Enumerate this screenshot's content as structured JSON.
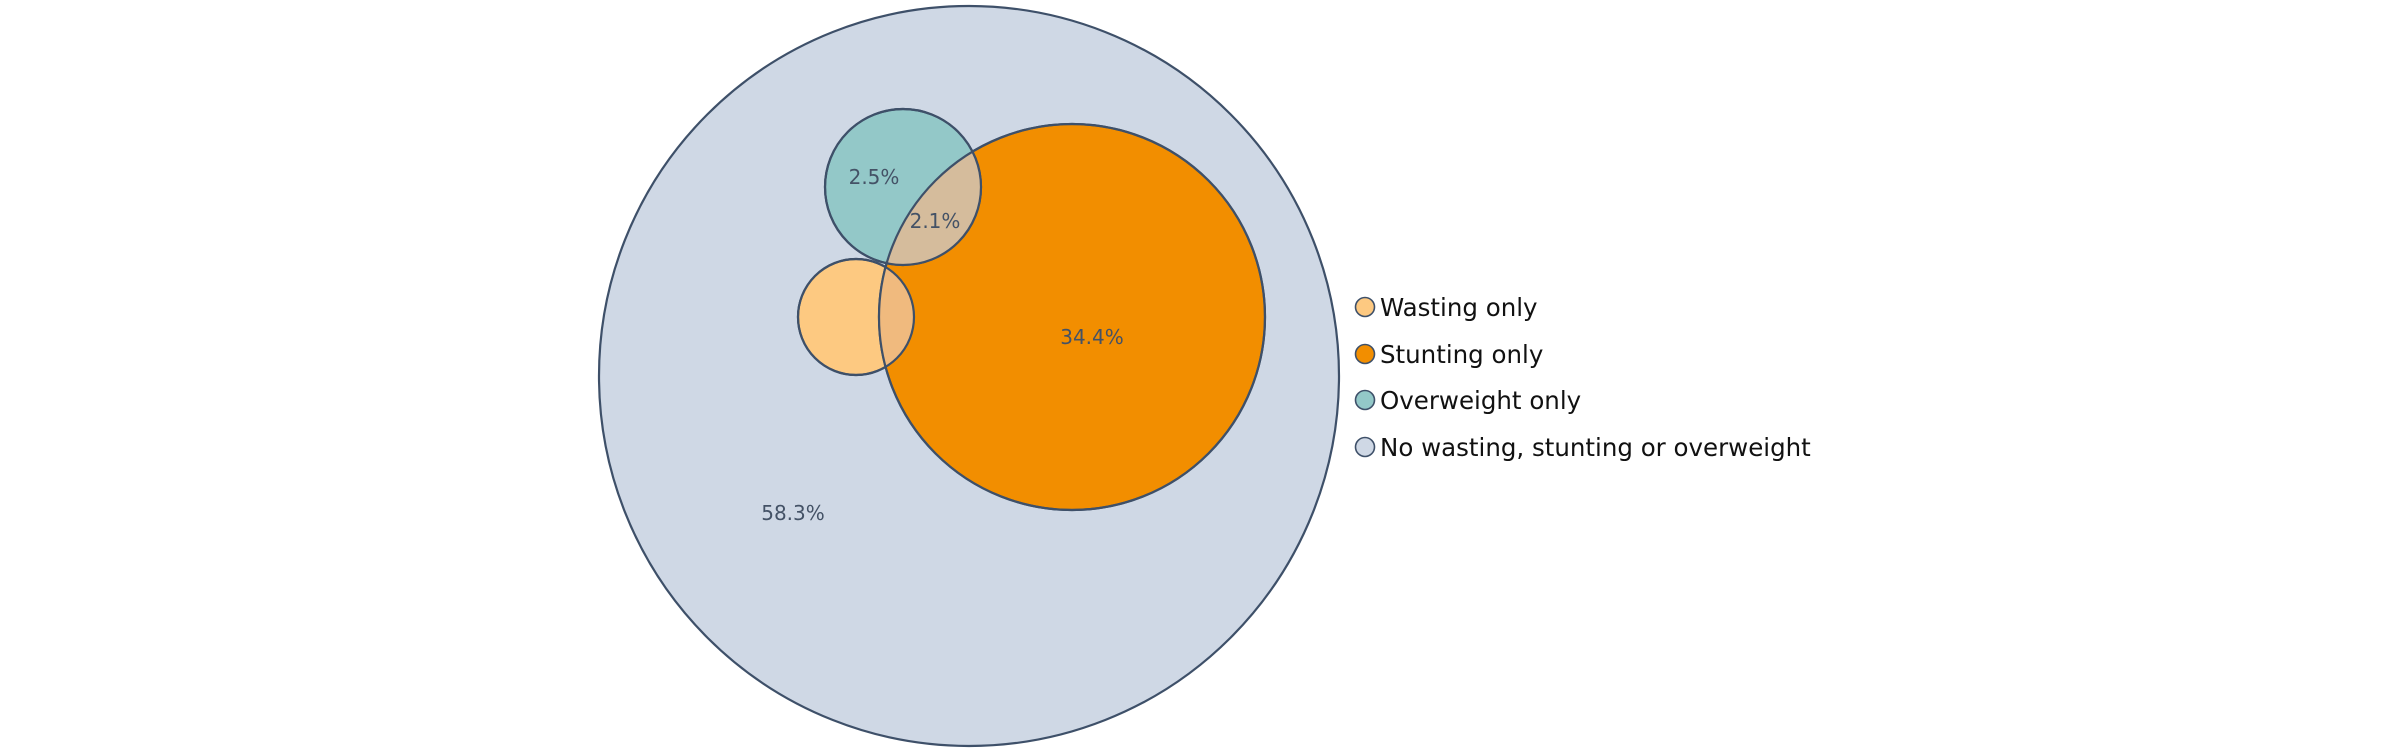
{
  "chart_data": {
    "type": "nested-circle-venn",
    "title": "",
    "regions": [
      {
        "key": "none",
        "label": "58.3%",
        "value": 58.3
      },
      {
        "key": "stunting",
        "label": "34.4%",
        "value": 34.4
      },
      {
        "key": "overweight",
        "label": "2.5%",
        "value": 2.5
      },
      {
        "key": "stunting_overweight",
        "label": "2.1%",
        "value": 2.1
      }
    ],
    "legend": [
      {
        "label": "Wasting only",
        "color": "#fdc981"
      },
      {
        "label": "Stunting only",
        "color": "#f28e00"
      },
      {
        "label": "Overweight only",
        "color": "#93c8c8"
      },
      {
        "label": "No wasting, stunting or overweight",
        "color": "#cfd8e5"
      }
    ],
    "colors": {
      "outline": "#3e5069",
      "overlap_stunting_overweight": "#d5bc9c",
      "overlap_wasting_stunting": "#f0ba7e"
    },
    "legend_placement": "right"
  }
}
